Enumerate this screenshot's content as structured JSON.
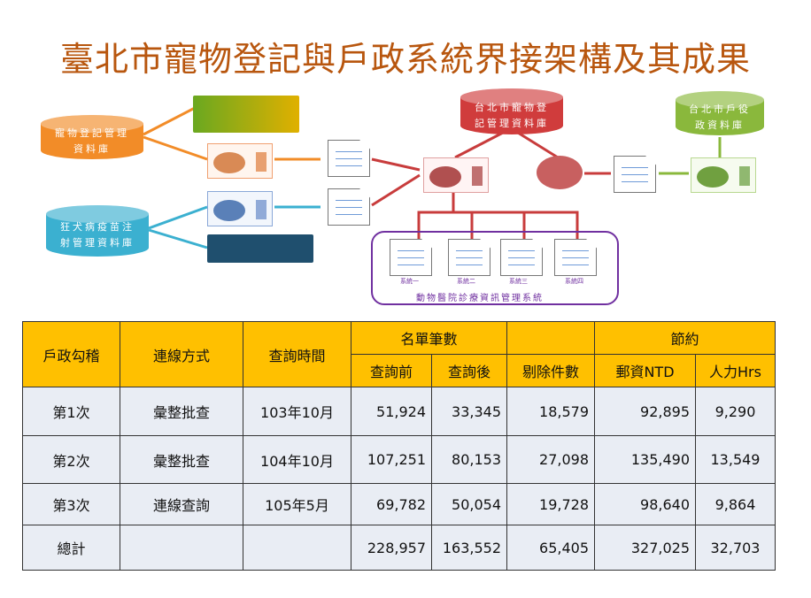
{
  "title": "臺北市寵物登記與戶政系統界接架構及其成果",
  "diagram": {
    "pet_db": "寵物登記管理\n資料庫",
    "rabies_db": "狂犬病疫苗注\n射管理資料庫",
    "taipei_pet_db": "台北市寵物登\n記管理資料庫",
    "household_db": "台北市戶役\n政資料庫",
    "clinic_systems": [
      "系統一",
      "系統二",
      "系統三",
      "系統四"
    ],
    "clinic_group": "動物醫院診療資訊管理系統",
    "colors": {
      "pet": "#f28c28",
      "rabies": "#3bb0d0",
      "taipei": "#d03c3c",
      "household": "#8ab83c",
      "clinic": "#7030a0"
    }
  },
  "table": {
    "headers": {
      "col1": "戶政勾稽",
      "col2": "連線方式",
      "col3": "查詢時間",
      "group1": "名單筆數",
      "before": "查詢前",
      "after": "查詢後",
      "removed": "剔除件數",
      "group2": "節約",
      "postage": "郵資NTD",
      "labor": "人力Hrs"
    },
    "rows": [
      [
        "第1次",
        "彙整批查",
        "103年10月",
        "51,924",
        "33,345",
        "18,579",
        "92,895",
        "9,290"
      ],
      [
        "第2次",
        "彙整批查",
        "104年10月",
        "107,251",
        "80,153",
        "27,098",
        "135,490",
        "13,549"
      ],
      [
        "第3次",
        "連線查詢",
        "105年5月",
        "69,782",
        "50,054",
        "19,728",
        "98,640",
        "9,864"
      ],
      [
        "總計",
        "",
        "",
        "228,957",
        "163,552",
        "65,405",
        "327,025",
        "32,703"
      ]
    ],
    "header_color": "#ffc000",
    "row_color": "#e9edf4"
  }
}
